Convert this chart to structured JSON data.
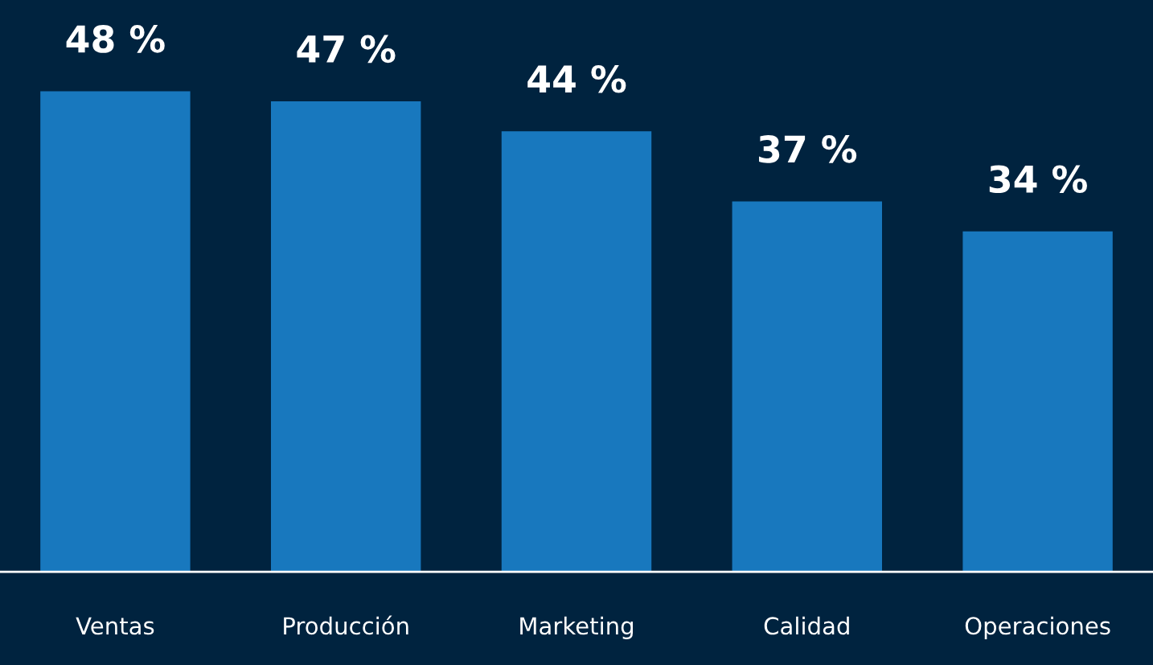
{
  "chart_data": {
    "type": "bar",
    "categories": [
      "Ventas",
      "Producción",
      "Marketing",
      "Calidad",
      "Operaciones"
    ],
    "values": [
      48,
      47,
      44,
      37,
      34
    ],
    "color": "#1878be",
    "value_labels": [
      "48 %",
      "47 %",
      "44 %",
      "37 %",
      "34 %"
    ],
    "grid": false,
    "legend": false
  }
}
